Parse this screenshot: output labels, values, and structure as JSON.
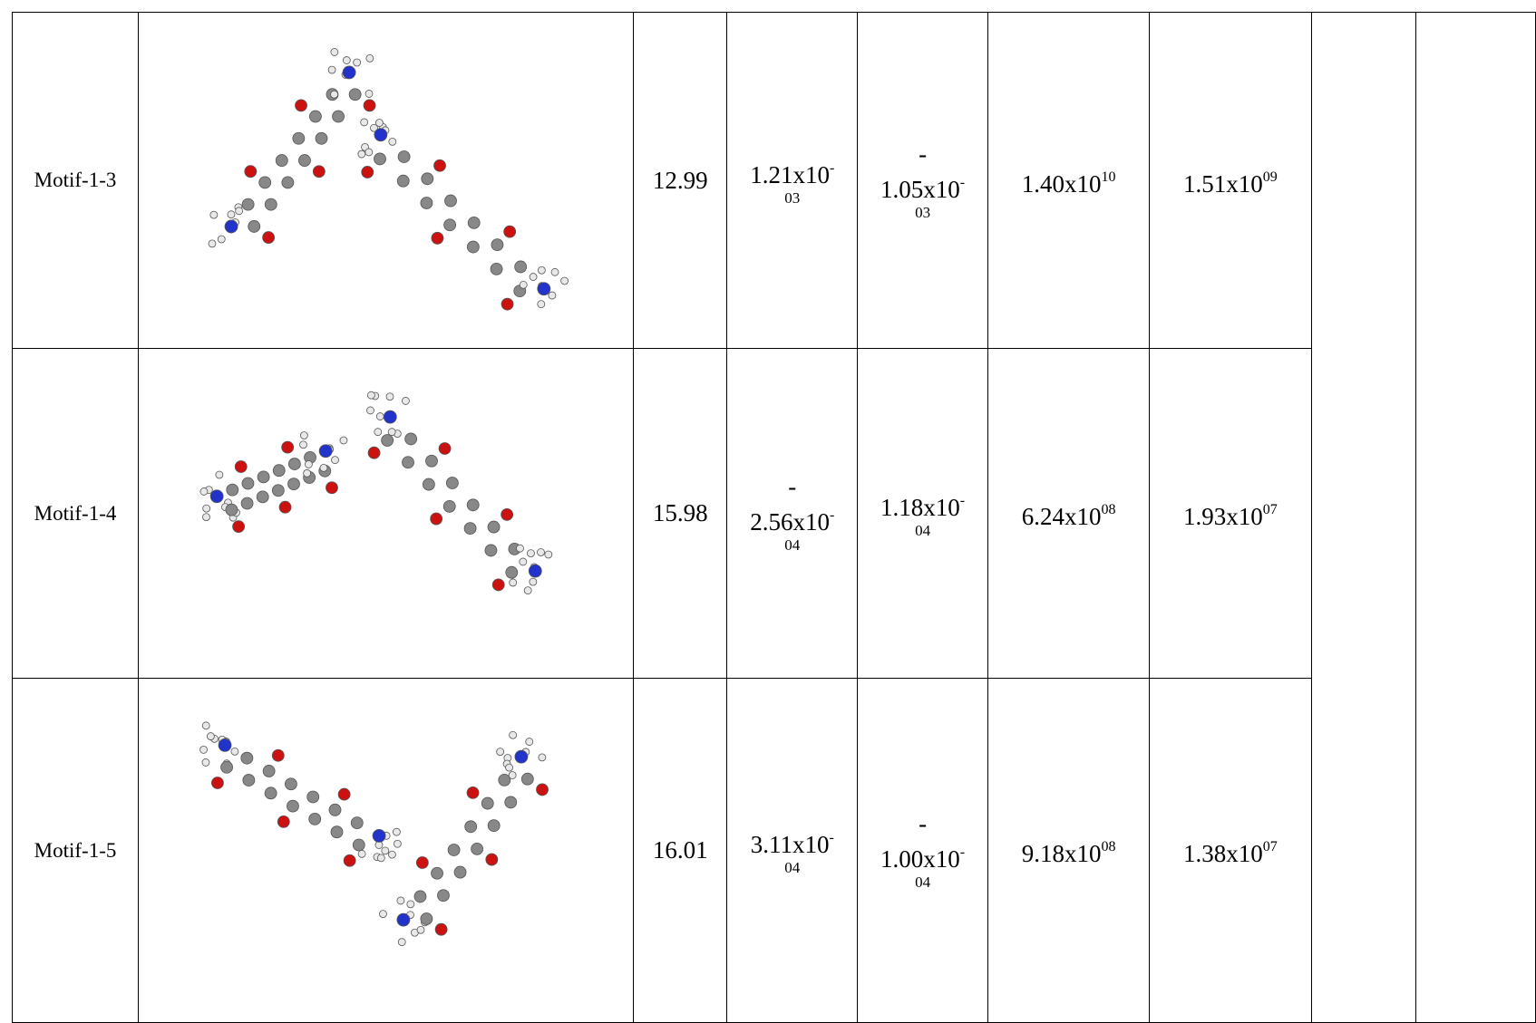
{
  "table": {
    "rows": [
      {
        "name": "Motif-1-3",
        "energy": 12.99,
        "cells": [
          {
            "base": "1.21x10",
            "exp_sign": "-",
            "exp": "03"
          },
          {
            "sign": "-",
            "base": "1.05x10",
            "exp_sign": "-",
            "exp": "03"
          },
          {
            "base": "1.40x10",
            "exp": "10"
          },
          {
            "base": "1.51x10",
            "exp": "09"
          }
        ]
      },
      {
        "name": "Motif-1-4",
        "energy": 15.98,
        "cells": [
          {
            "sign": "-",
            "base": "2.56x10",
            "exp_sign": "-",
            "exp": "04"
          },
          {
            "base": "1.18x10",
            "exp_sign": "-",
            "exp": "04"
          },
          {
            "base": "6.24x10",
            "exp": "08"
          },
          {
            "base": "1.93x10",
            "exp": "07"
          }
        ]
      },
      {
        "name": "Motif-1-5",
        "energy": 16.01,
        "cells": [
          {
            "base": "3.11x10",
            "exp_sign": "-",
            "exp": "04"
          },
          {
            "sign": "-",
            "base": "1.00x10",
            "exp_sign": "-",
            "exp": "04"
          },
          {
            "base": "9.18x10",
            "exp": "08"
          },
          {
            "base": "1.38x10",
            "exp": "07"
          }
        ]
      }
    ]
  }
}
